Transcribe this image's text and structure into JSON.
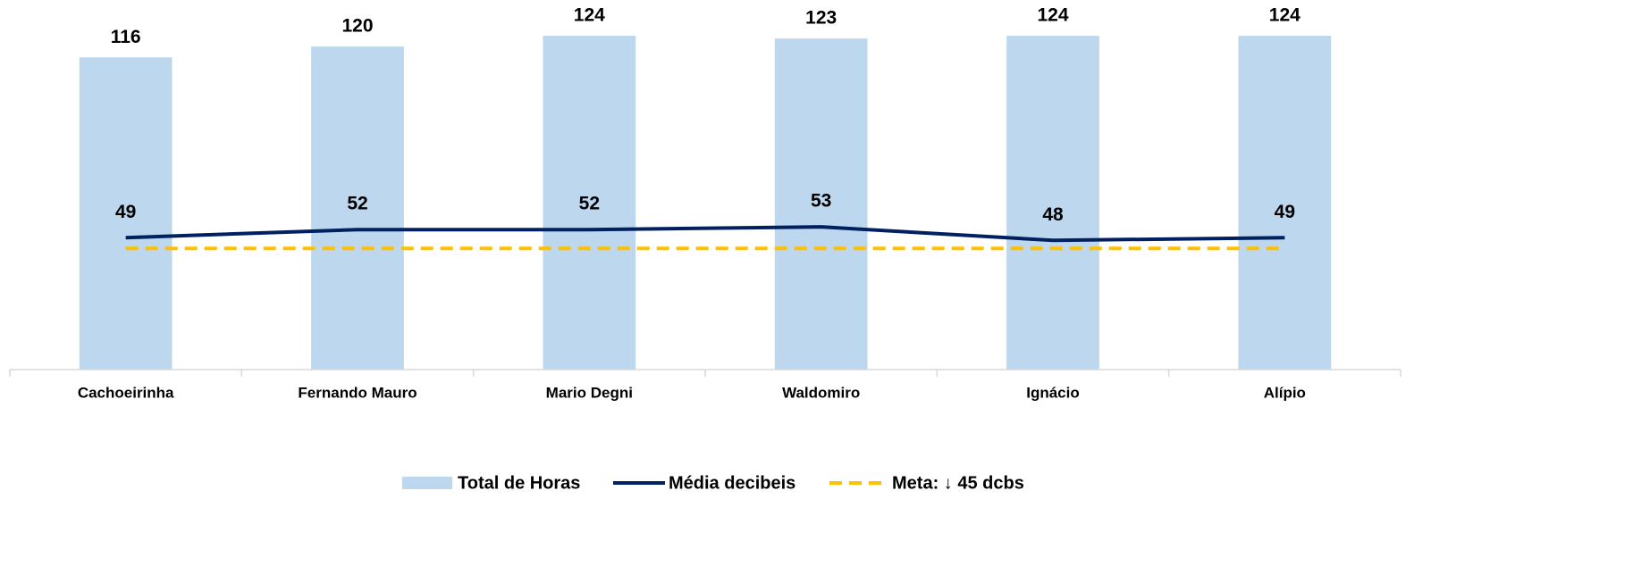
{
  "chart_data": {
    "type": "bar+line",
    "categories": [
      "Cachoeirinha",
      "Fernando Mauro",
      "Mario Degni",
      "Waldomiro",
      "Ignácio",
      "Alípio"
    ],
    "series": [
      {
        "name": "Total de Horas",
        "type": "bar",
        "color": "#bdd7ee",
        "values": [
          116,
          120,
          124,
          123,
          124,
          124
        ]
      },
      {
        "name": "Média decibeis",
        "type": "line",
        "color": "#002060",
        "values": [
          49,
          52,
          52,
          53,
          48,
          49
        ]
      },
      {
        "name": "Meta: ↓ 45 dcbs",
        "type": "dashed-line",
        "color": "#ffc000",
        "values": [
          45,
          45,
          45,
          45,
          45,
          45
        ]
      }
    ],
    "ylim": [
      0,
      130
    ],
    "legend": "bottom"
  }
}
